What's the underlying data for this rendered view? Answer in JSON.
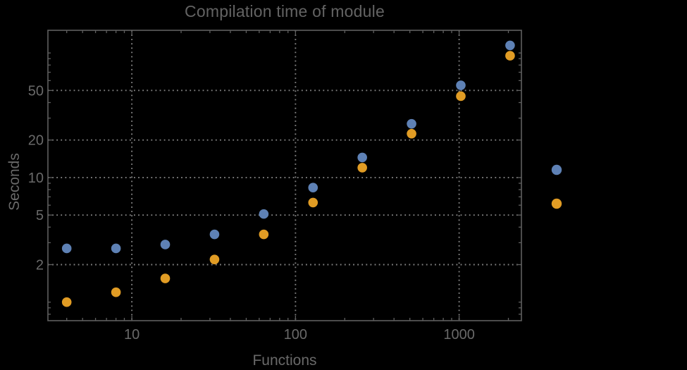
{
  "chart_data": {
    "type": "scatter",
    "title": "Compilation time of module",
    "x_axis": {
      "label": "Functions",
      "scale": "log",
      "range": [
        3.07,
        2402
      ],
      "major_ticks": [
        {
          "value": 10,
          "label": "10"
        },
        {
          "value": 100,
          "label": "100"
        },
        {
          "value": 1000,
          "label": "1000"
        }
      ],
      "minor_ticks": [
        4,
        5,
        6,
        7,
        8,
        9,
        20,
        30,
        40,
        50,
        60,
        70,
        80,
        90,
        200,
        300,
        400,
        500,
        600,
        700,
        800,
        900,
        2000
      ]
    },
    "y_axis": {
      "label": "Seconds",
      "scale": "log",
      "range": [
        0.71,
        152
      ],
      "major_ticks": [
        {
          "value": 50,
          "label": "50"
        },
        {
          "value": 20,
          "label": "20"
        },
        {
          "value": 10,
          "label": "10"
        },
        {
          "value": 5,
          "label": "5"
        },
        {
          "value": 2,
          "label": "2"
        }
      ],
      "minor_ticks": [
        0.8,
        0.9,
        1,
        3,
        4,
        6,
        7,
        8,
        9,
        30,
        40,
        60,
        70,
        80,
        90,
        100
      ]
    },
    "grid": {
      "major": true,
      "minor": false,
      "style": "dotted"
    },
    "x": [
      4,
      8,
      16,
      32,
      64,
      128,
      256,
      512,
      1024,
      2048
    ],
    "series": [
      {
        "name": "series-blue",
        "color": "#5e81b5",
        "values": [
          2.7,
          2.7,
          2.9,
          3.5,
          5.1,
          8.3,
          14.5,
          27,
          55,
          115
        ]
      },
      {
        "name": "series-orange",
        "color": "#e19c24",
        "values": [
          1.0,
          1.2,
          1.55,
          2.2,
          3.5,
          6.3,
          12,
          22.5,
          45,
          95
        ]
      }
    ],
    "legend": {
      "position": "outside-right",
      "labels_visible": false,
      "markers": [
        {
          "series": "series-blue",
          "color": "#5e81b5"
        },
        {
          "series": "series-orange",
          "color": "#e19c24"
        }
      ]
    }
  },
  "colors": {
    "background": "#000000",
    "title_text": "#636363",
    "axis_text": "#696969",
    "frame": "#5f5f5f",
    "gridline": "#828282"
  }
}
